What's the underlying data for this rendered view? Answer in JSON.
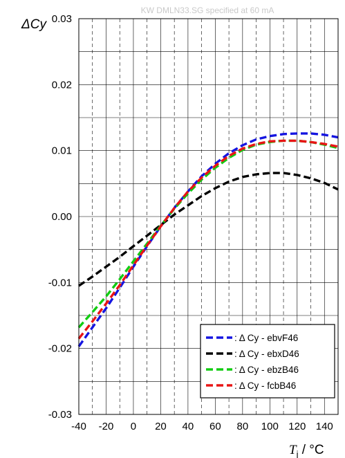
{
  "chart_data": {
    "type": "line",
    "title": "KW DMLN33.SG specified at 60 mA",
    "ylabel": "ΔCy",
    "xlabel_italic": "T",
    "xlabel_sub": "j",
    "xlabel_rest": " / °C",
    "xlim": [
      -40,
      150
    ],
    "ylim": [
      -0.03,
      0.03
    ],
    "x_ticks": [
      -40,
      -20,
      0,
      20,
      40,
      60,
      80,
      100,
      120,
      140
    ],
    "x_tick_labels": [
      "-40",
      "-20",
      "0",
      "20",
      "40",
      "60",
      "80",
      "100",
      "120",
      "140"
    ],
    "y_ticks": [
      -0.03,
      -0.02,
      -0.01,
      0.0,
      0.01,
      0.02,
      0.03
    ],
    "y_tick_labels": [
      "-0.03",
      "-0.02",
      "-0.01",
      "0.00",
      "0.01",
      "0.02",
      "0.03"
    ],
    "vgrid_minor_x": [
      -30,
      -10,
      10,
      30,
      50,
      70,
      90,
      110,
      130
    ],
    "hgrid_y": [
      -0.025,
      -0.02,
      -0.015,
      -0.01,
      -0.005,
      0.0,
      0.005,
      0.01,
      0.015,
      0.02,
      0.025
    ],
    "grid": true,
    "legend_position": "bottom-right",
    "x": [
      -40,
      -30,
      -20,
      -10,
      0,
      10,
      20,
      30,
      40,
      50,
      60,
      70,
      80,
      90,
      100,
      110,
      120,
      130,
      140,
      150
    ],
    "series": [
      {
        "name": ": Δ Cy - ebvF46",
        "color": "#1515e0",
        "values": [
          -0.0197,
          -0.0168,
          -0.0139,
          -0.0108,
          -0.0076,
          -0.0045,
          -0.0015,
          0.0013,
          0.0038,
          0.0061,
          0.008,
          0.0096,
          0.0108,
          0.0117,
          0.0122,
          0.0125,
          0.0126,
          0.0126,
          0.0124,
          0.012
        ]
      },
      {
        "name": ": Δ Cy - ebxD46",
        "color": "#000000",
        "values": [
          -0.0105,
          -0.0091,
          -0.0076,
          -0.0061,
          -0.0045,
          -0.0029,
          -0.0013,
          0.0003,
          0.0017,
          0.0031,
          0.0043,
          0.0053,
          0.006,
          0.0064,
          0.0066,
          0.0066,
          0.0063,
          0.0058,
          0.0051,
          0.0041
        ]
      },
      {
        "name": ": Δ Cy - ebzB46",
        "color": "#12cc12",
        "values": [
          -0.0168,
          -0.0145,
          -0.0121,
          -0.0095,
          -0.0068,
          -0.0041,
          -0.0014,
          0.0012,
          0.0035,
          0.0056,
          0.0074,
          0.0089,
          0.0101,
          0.0109,
          0.0113,
          0.0115,
          0.0115,
          0.0113,
          0.0109,
          0.0104
        ]
      },
      {
        "name": ": Δ Cy - fcbB46",
        "color": "#e81515",
        "values": [
          -0.0185,
          -0.0159,
          -0.0132,
          -0.0104,
          -0.0074,
          -0.0044,
          -0.0015,
          0.0013,
          0.0038,
          0.0059,
          0.0077,
          0.0092,
          0.0103,
          0.011,
          0.0114,
          0.0115,
          0.0115,
          0.0113,
          0.011,
          0.0106
        ]
      }
    ]
  }
}
